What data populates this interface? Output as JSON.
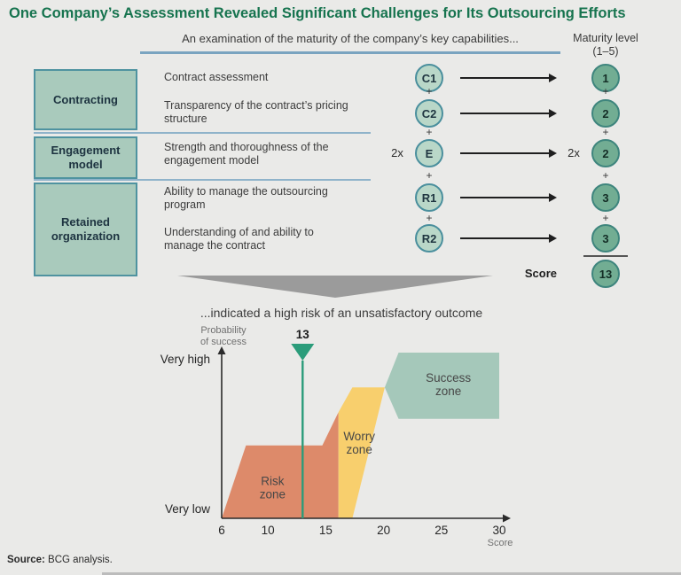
{
  "title": "One Company’s Assessment Revealed Significant Challenges for Its Outsourcing Efforts",
  "top_panel": {
    "examination_header": "An examination of the maturity of the company’s key capabilities...",
    "maturity_header": "Maturity level",
    "maturity_range": "(1–5)",
    "groups": [
      {
        "label": "Contracting"
      },
      {
        "label": "Engagement model"
      },
      {
        "label": "Retained organization"
      }
    ],
    "rows": [
      {
        "capability": "Contract assessment",
        "code": "C1",
        "level": "1"
      },
      {
        "capability": "Transparency of the contract’s pricing structure",
        "code": "C2",
        "level": "2"
      },
      {
        "capability": "Strength and thoroughness of the engagement model",
        "code": "E",
        "level": "2",
        "multiplier": "2x"
      },
      {
        "capability": "Ability to manage the outsourcing program",
        "code": "R1",
        "level": "3"
      },
      {
        "capability": "Understanding of and ability to manage the contract",
        "code": "R2",
        "level": "3"
      }
    ],
    "plus_sign": "+",
    "score_label": "Score",
    "score_value": "13"
  },
  "connector_caption": "...indicated a high risk of an unsatisfactory outcome",
  "chart_data": {
    "type": "area",
    "xlabel": "Score",
    "ylabel": "Probability of success",
    "x_range": [
      6,
      30
    ],
    "x_ticks": [
      6,
      10,
      15,
      20,
      25,
      30
    ],
    "y_axis_labels": {
      "high": "Very high",
      "low": "Very low"
    },
    "marker": {
      "score": 13,
      "label": "13",
      "color": "#2b9c7a"
    },
    "zones": [
      {
        "name": "Risk zone",
        "color": "#dd8a6a",
        "label_pos": [
          10.4,
          0.19
        ],
        "points": [
          [
            6,
            0
          ],
          [
            8.1,
            0.44
          ],
          [
            14.7,
            0.44
          ],
          [
            16.1,
            0.64
          ],
          [
            16.1,
            0
          ]
        ]
      },
      {
        "name": "Worry zone",
        "color": "#f8cf6d",
        "label_pos": [
          17.9,
          0.46
        ],
        "points": [
          [
            16.1,
            0
          ],
          [
            16.1,
            0.64
          ],
          [
            17.3,
            0.79
          ],
          [
            20.1,
            0.79
          ],
          [
            17.3,
            0
          ]
        ]
      },
      {
        "name": "Success zone",
        "color": "#a5c8ba",
        "label_pos": [
          25.6,
          0.813
        ],
        "points": [
          [
            20.1,
            0.79
          ],
          [
            21.3,
            1.0
          ],
          [
            30,
            1.0
          ],
          [
            30,
            0.6
          ],
          [
            21.3,
            0.6
          ]
        ]
      }
    ]
  },
  "footer": {
    "source_label": "Source:",
    "source_text": " BCG analysis."
  },
  "colors": {
    "background": "#eaeae8",
    "title_green": "#17744f",
    "box_fill": "#a9cabc",
    "box_border": "#4f93a0",
    "code_circle_fill": "#b9d7c8",
    "code_circle_border": "#4a8f9d",
    "level_circle_fill": "#72ad93",
    "level_circle_border": "#3e857d",
    "separator_blue": "#8fb3ca",
    "underline_blue": "#7aa4c0",
    "connector_gray": "#9b9b9b",
    "arrow_black": "#1f1f1f"
  }
}
